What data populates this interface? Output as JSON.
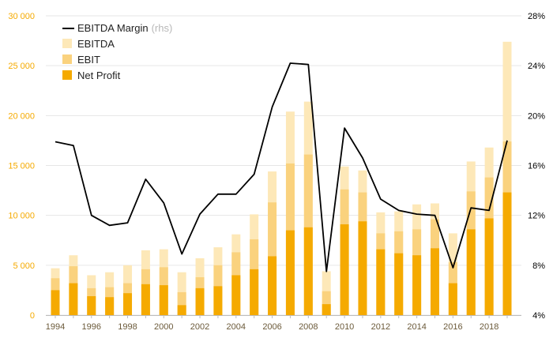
{
  "chart_data": {
    "type": "bar",
    "title": "",
    "x": [
      1994,
      1995,
      1996,
      1997,
      1998,
      1999,
      2000,
      2001,
      2002,
      2003,
      2004,
      2005,
      2006,
      2007,
      2008,
      2009,
      2010,
      2011,
      2012,
      2013,
      2014,
      2015,
      2016,
      2017,
      2018,
      2019
    ],
    "x_tick_labels": [
      "1994",
      "1996",
      "1998",
      "2000",
      "2002",
      "2004",
      "2006",
      "2008",
      "2010",
      "2012",
      "2014",
      "2016",
      "2018"
    ],
    "y_left": {
      "ylim": [
        0,
        30000
      ],
      "ticks": [
        0,
        5000,
        10000,
        15000,
        20000,
        25000,
        30000
      ],
      "tick_labels": [
        "0",
        "5 000",
        "10 000",
        "15 000",
        "20 000",
        "25 000",
        "30 000"
      ]
    },
    "y_right": {
      "ylim": [
        4,
        28
      ],
      "ticks": [
        4,
        8,
        12,
        16,
        20,
        24,
        28
      ],
      "tick_labels": [
        "4%",
        "8%",
        "12%",
        "16%",
        "20%",
        "24%",
        "28%"
      ]
    },
    "legend": {
      "placement": "top-left",
      "items": [
        {
          "label": "EBITDA Margin",
          "suffix": "(rhs)",
          "kind": "line"
        },
        {
          "label": "EBITDA",
          "kind": "bar"
        },
        {
          "label": "EBIT",
          "kind": "bar"
        },
        {
          "label": "Net Profit",
          "kind": "bar"
        }
      ]
    },
    "series": [
      {
        "name": "EBITDA",
        "type": "bar",
        "color": "#fde8b8",
        "values": [
          4700,
          6000,
          4000,
          4300,
          5000,
          6500,
          6600,
          4300,
          5700,
          6800,
          8100,
          10100,
          14400,
          20400,
          21400,
          4400,
          14900,
          14500,
          10300,
          10400,
          11100,
          11200,
          8200,
          15400,
          16800,
          27400
        ]
      },
      {
        "name": "EBIT",
        "type": "bar",
        "color": "#fad27e",
        "values": [
          3700,
          4900,
          2700,
          2800,
          3200,
          4600,
          4800,
          2300,
          3800,
          5000,
          6300,
          7600,
          11300,
          15200,
          16100,
          2400,
          12600,
          12300,
          8200,
          8400,
          8600,
          9600,
          5300,
          12400,
          13800,
          17400
        ]
      },
      {
        "name": "Net Profit",
        "type": "bar",
        "color": "#f5aa00",
        "values": [
          2500,
          3200,
          1900,
          1800,
          2200,
          3100,
          3000,
          1000,
          2700,
          2900,
          4000,
          4600,
          5900,
          8500,
          8800,
          1100,
          9100,
          9400,
          6600,
          6200,
          6000,
          6700,
          3200,
          8600,
          9700,
          12300
        ]
      },
      {
        "name": "EBITDA Margin",
        "type": "line",
        "axis": "right",
        "color": "#000000",
        "values": [
          17.9,
          17.6,
          12.0,
          11.2,
          11.4,
          14.9,
          13.0,
          8.9,
          12.1,
          13.7,
          13.7,
          15.3,
          20.7,
          24.2,
          24.1,
          7.5,
          19.0,
          16.6,
          13.3,
          12.4,
          12.1,
          12.0,
          7.8,
          12.6,
          12.4,
          18.0
        ]
      }
    ],
    "colors": {
      "axis_left_text": "#f5aa00",
      "axis_right_text": "#000000",
      "axis_x_text": "#6b5a3a",
      "grid": "#e6e6e6"
    },
    "grid": true
  }
}
